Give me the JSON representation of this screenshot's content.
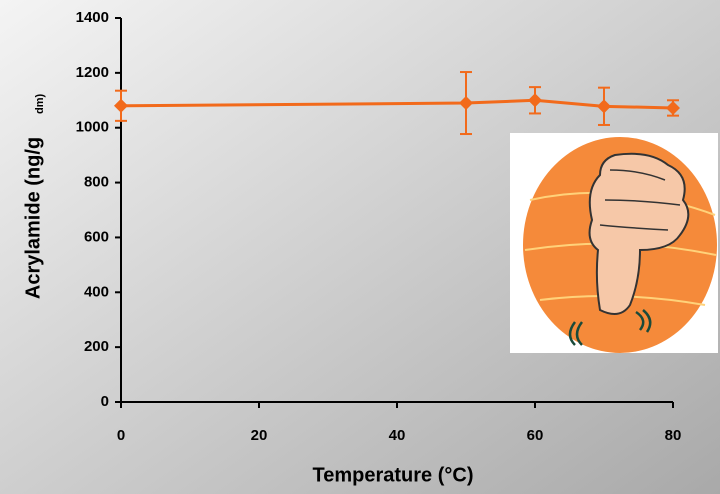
{
  "chart_data": {
    "type": "line",
    "xlabel": "Temperature (°C)",
    "ylabel": "Acrylamide (ng/g",
    "ylabel_subscript": "dm)",
    "x": [
      0,
      50,
      60,
      70,
      80
    ],
    "series": [
      {
        "color": "#f26a1b",
        "values": [
          1080,
          1090,
          1100,
          1078,
          1072
        ],
        "errors": [
          55,
          113,
          48,
          68,
          28
        ]
      }
    ],
    "xlim": [
      0,
      80
    ],
    "xticks": [
      0,
      20,
      40,
      60,
      80
    ],
    "ylim": [
      0,
      1400
    ],
    "yticks": [
      0,
      200,
      400,
      600,
      800,
      1000,
      1200,
      1400
    ]
  }
}
